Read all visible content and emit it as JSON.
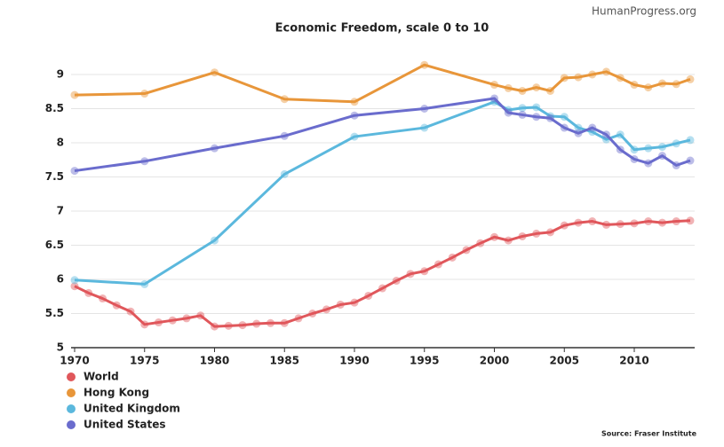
{
  "chart_data": {
    "type": "line",
    "title": "Economic Freedom, scale 0 to 10",
    "watermark": "HumanProgress.org",
    "source": "Source: Fraser Institute",
    "xlim": [
      1970,
      2014
    ],
    "xticks": [
      1970,
      1975,
      1980,
      1985,
      1990,
      1995,
      2000,
      2005,
      2010
    ],
    "ylim": [
      5,
      9.25
    ],
    "yticks": [
      5,
      5.5,
      6,
      6.5,
      7,
      7.5,
      8,
      8.5,
      9
    ],
    "grid": true,
    "legend": "bottom-left",
    "series": [
      {
        "name": "World",
        "color": "#e0575b",
        "x": [
          1970,
          1971,
          1972,
          1973,
          1974,
          1975,
          1976,
          1977,
          1978,
          1979,
          1980,
          1981,
          1982,
          1983,
          1984,
          1985,
          1986,
          1987,
          1988,
          1989,
          1990,
          1991,
          1992,
          1993,
          1994,
          1995,
          1996,
          1997,
          1998,
          1999,
          2000,
          2001,
          2002,
          2003,
          2004,
          2005,
          2006,
          2007,
          2008,
          2009,
          2010,
          2011,
          2012,
          2013,
          2014
        ],
        "values": [
          5.9,
          5.8,
          5.72,
          5.62,
          5.53,
          5.34,
          5.37,
          5.4,
          5.43,
          5.47,
          5.31,
          5.32,
          5.33,
          5.35,
          5.36,
          5.36,
          5.43,
          5.5,
          5.56,
          5.63,
          5.66,
          5.76,
          5.87,
          5.98,
          6.08,
          6.12,
          6.22,
          6.32,
          6.43,
          6.53,
          6.62,
          6.57,
          6.63,
          6.67,
          6.69,
          6.79,
          6.83,
          6.85,
          6.8,
          6.81,
          6.82,
          6.85,
          6.83,
          6.85,
          6.86
        ]
      },
      {
        "name": "Hong Kong",
        "color": "#e8963a",
        "x": [
          1970,
          1975,
          1980,
          1985,
          1990,
          1995,
          2000,
          2001,
          2002,
          2003,
          2004,
          2005,
          2006,
          2007,
          2008,
          2009,
          2010,
          2011,
          2012,
          2013,
          2014
        ],
        "values": [
          8.7,
          8.72,
          9.03,
          8.64,
          8.6,
          9.14,
          8.85,
          8.8,
          8.76,
          8.81,
          8.76,
          8.95,
          8.96,
          9.0,
          9.04,
          8.95,
          8.85,
          8.81,
          8.87,
          8.86,
          8.93
        ]
      },
      {
        "name": "United Kingdom",
        "color": "#5bb8dd",
        "x": [
          1970,
          1975,
          1980,
          1985,
          1990,
          1995,
          2000,
          2001,
          2002,
          2003,
          2004,
          2005,
          2006,
          2007,
          2008,
          2009,
          2010,
          2011,
          2012,
          2013,
          2014
        ],
        "values": [
          5.99,
          5.93,
          6.57,
          7.54,
          8.09,
          8.22,
          8.6,
          8.48,
          8.51,
          8.52,
          8.39,
          8.38,
          8.22,
          8.16,
          8.05,
          8.12,
          7.9,
          7.92,
          7.94,
          7.99,
          8.04
        ]
      },
      {
        "name": "United States",
        "color": "#6a6ccd",
        "x": [
          1970,
          1975,
          1980,
          1985,
          1990,
          1995,
          2000,
          2001,
          2002,
          2003,
          2004,
          2005,
          2006,
          2007,
          2008,
          2009,
          2010,
          2011,
          2012,
          2013,
          2014
        ],
        "values": [
          7.59,
          7.73,
          7.92,
          8.1,
          8.4,
          8.5,
          8.65,
          8.44,
          8.41,
          8.38,
          8.36,
          8.22,
          8.14,
          8.22,
          8.12,
          7.9,
          7.76,
          7.7,
          7.81,
          7.67,
          7.74
        ]
      }
    ]
  }
}
